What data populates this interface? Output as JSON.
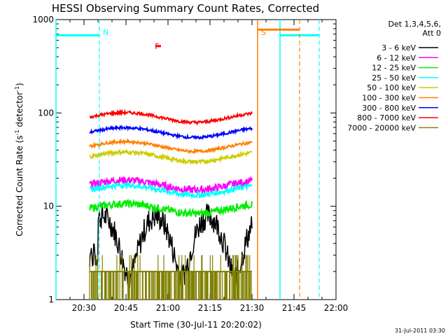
{
  "chart_data": {
    "type": "line",
    "title": "HESSI Observing Summary Count Rates, Corrected",
    "xlabel": "Start Time (30-Jul-11 20:20:02)",
    "ylabel": "Corrected Count Rate (s",
    "ylabel_sup1": "-1",
    "ylabel_mid": " detector",
    "ylabel_sup2": "-1",
    "ylabel_end": ")",
    "y_scale": "log",
    "ylim": [
      1,
      1000
    ],
    "xlim_minutes_after_2020": [
      0,
      100
    ],
    "x_ticks": [
      {
        "min": 10,
        "label": "20:30"
      },
      {
        "min": 25,
        "label": "20:45"
      },
      {
        "min": 40,
        "label": "21:00"
      },
      {
        "min": 55,
        "label": "21:15"
      },
      {
        "min": 70,
        "label": "21:30"
      },
      {
        "min": 85,
        "label": "21:45"
      },
      {
        "min": 100,
        "label": "22:00"
      }
    ],
    "y_ticks": [
      {
        "value": 1,
        "label": "1"
      },
      {
        "value": 10,
        "label": "10"
      },
      {
        "value": 100,
        "label": "100"
      },
      {
        "value": 1000,
        "label": "1000"
      }
    ],
    "legend_title_1": "Det 1,3,4,5,6,",
    "legend_title_2": "Att 0",
    "legend_position": "right",
    "data_interval_min": [
      12,
      70
    ],
    "series": [
      {
        "name": "3 - 6 keV",
        "color": "#000000",
        "level": 6,
        "noise": 0.28,
        "type": "black"
      },
      {
        "name": "6 - 12 keV",
        "color": "#ff00ff",
        "level": 17,
        "noise": 0.08,
        "type": "line"
      },
      {
        "name": "12 - 25 keV",
        "color": "#00ee00",
        "level": 9.5,
        "noise": 0.08,
        "type": "line"
      },
      {
        "name": "25 - 50 keV",
        "color": "#00ffff",
        "level": 15,
        "noise": 0.06,
        "type": "line"
      },
      {
        "name": "50 - 100 keV",
        "color": "#cccc00",
        "level": 34,
        "noise": 0.04,
        "type": "line"
      },
      {
        "name": "100 - 300 keV",
        "color": "#ff8000",
        "level": 44,
        "noise": 0.03,
        "type": "line"
      },
      {
        "name": "300 - 800 keV",
        "color": "#0000ff",
        "level": 62,
        "noise": 0.03,
        "type": "line"
      },
      {
        "name": "800 - 7000 keV",
        "color": "#ff0000",
        "level": 90,
        "noise": 0.03,
        "type": "line"
      },
      {
        "name": "7000 - 20000 keV",
        "color": "#808000",
        "level": 1.5,
        "noise": 0,
        "type": "olive"
      }
    ],
    "annotations": [
      {
        "label": "N",
        "color": "#00ffff",
        "min": 15.5
      },
      {
        "label": "F",
        "color": "#ff0000",
        "min": 34
      },
      {
        "label": "S",
        "color": "#ff8000",
        "min": 72
      },
      {
        "label": "31-Jul-2011 03:30",
        "color": "#000000"
      }
    ],
    "intervals": [
      {
        "kind": "night",
        "color": "#00ffff",
        "start": 0,
        "end": 15.5,
        "dashed_end": true
      },
      {
        "kind": "night",
        "color": "#00ffff",
        "start": 80,
        "end": 94,
        "dashed_end": true
      },
      {
        "kind": "saa",
        "color": "#ff8000",
        "start": 72,
        "end": 87,
        "dashed_end": true
      },
      {
        "kind": "flare",
        "color": "#ff0000",
        "start": 35.5,
        "end": 37.5
      }
    ]
  }
}
